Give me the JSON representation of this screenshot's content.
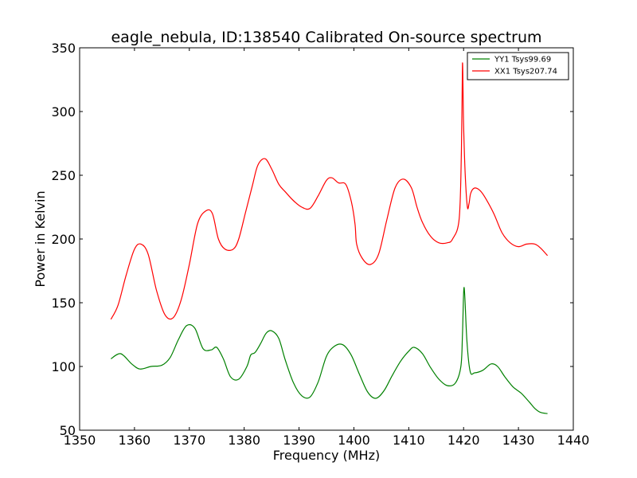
{
  "chart_data": {
    "type": "line",
    "title": "eagle_nebula, ID:138540 Calibrated On-source spectrum",
    "xlabel": "Frequency (MHz)",
    "ylabel": "Power in Kelvin",
    "xlim": [
      1350,
      1440
    ],
    "ylim": [
      50,
      350
    ],
    "xticks": [
      1350,
      1360,
      1370,
      1380,
      1390,
      1400,
      1410,
      1420,
      1430,
      1440
    ],
    "yticks": [
      50,
      100,
      150,
      200,
      250,
      300,
      350
    ],
    "grid": false,
    "legend_position": "top-right",
    "series": [
      {
        "name": "YY1 Tsys99.69",
        "color": "#008000",
        "x": [
          1355.7,
          1357.5,
          1359.5,
          1361.0,
          1363.0,
          1365.0,
          1366.5,
          1368.0,
          1369.5,
          1371.0,
          1372.5,
          1374.0,
          1375.0,
          1376.2,
          1377.5,
          1379.0,
          1380.5,
          1381.2,
          1382.0,
          1383.0,
          1384.0,
          1385.0,
          1386.3,
          1387.5,
          1389.0,
          1390.5,
          1392.0,
          1393.5,
          1395.0,
          1396.5,
          1398.0,
          1399.5,
          1401.0,
          1402.5,
          1404.0,
          1405.5,
          1407.0,
          1408.5,
          1410.0,
          1411.0,
          1412.5,
          1414.0,
          1415.5,
          1417.0,
          1418.5,
          1419.5,
          1419.8,
          1420.1,
          1420.6,
          1421.2,
          1422.0,
          1423.5,
          1425.0,
          1426.2,
          1427.5,
          1429.0,
          1430.5,
          1432.0,
          1433.0,
          1434.0,
          1435.3
        ],
        "values": [
          106,
          110,
          102,
          98,
          100,
          101,
          107,
          121,
          132,
          130,
          114,
          113,
          115,
          106,
          92,
          90,
          100,
          109,
          111,
          118,
          126,
          128,
          122,
          105,
          87,
          77,
          76,
          88,
          108,
          116,
          117,
          109,
          94,
          80,
          75,
          81,
          93,
          104,
          112,
          115,
          110,
          99,
          90,
          85,
          87,
          100,
          125,
          162,
          120,
          96,
          95,
          97,
          102,
          100,
          92,
          84,
          79,
          72,
          67,
          64,
          63
        ]
      },
      {
        "name": "XX1 Tsys207.74",
        "color": "#ff0000",
        "x": [
          1355.7,
          1357.0,
          1358.5,
          1360.0,
          1361.2,
          1362.5,
          1364.0,
          1365.5,
          1367.0,
          1368.5,
          1370.0,
          1371.5,
          1373.0,
          1374.2,
          1375.3,
          1376.5,
          1378.0,
          1379.0,
          1380.2,
          1381.5,
          1382.5,
          1383.8,
          1385.0,
          1386.3,
          1387.5,
          1389.0,
          1390.5,
          1392.0,
          1393.5,
          1395.0,
          1396.0,
          1397.2,
          1398.5,
          1399.5,
          1400.2,
          1400.5,
          1401.5,
          1403.0,
          1404.5,
          1406.0,
          1407.5,
          1409.0,
          1410.5,
          1411.5,
          1412.5,
          1414.0,
          1415.5,
          1417.0,
          1418.0,
          1419.2,
          1419.6,
          1419.8,
          1420.0,
          1420.3,
          1420.7,
          1421.0,
          1421.3,
          1422.0,
          1423.0,
          1424.0,
          1425.5,
          1427.0,
          1428.5,
          1430.0,
          1431.5,
          1433.0,
          1434.0,
          1435.3
        ],
        "values": [
          137,
          148,
          172,
          192,
          196,
          188,
          160,
          141,
          138,
          152,
          180,
          212,
          222,
          220,
          200,
          192,
          192,
          200,
          220,
          242,
          258,
          263,
          255,
          243,
          237,
          230,
          225,
          224,
          234,
          246,
          248,
          244,
          243,
          230,
          212,
          196,
          185,
          180,
          188,
          215,
          240,
          247,
          240,
          225,
          213,
          202,
          197,
          197,
          200,
          216,
          270,
          338,
          290,
          250,
          225,
          228,
          236,
          240,
          238,
          232,
          220,
          205,
          197,
          194,
          196,
          196,
          193,
          187
        ]
      }
    ]
  }
}
